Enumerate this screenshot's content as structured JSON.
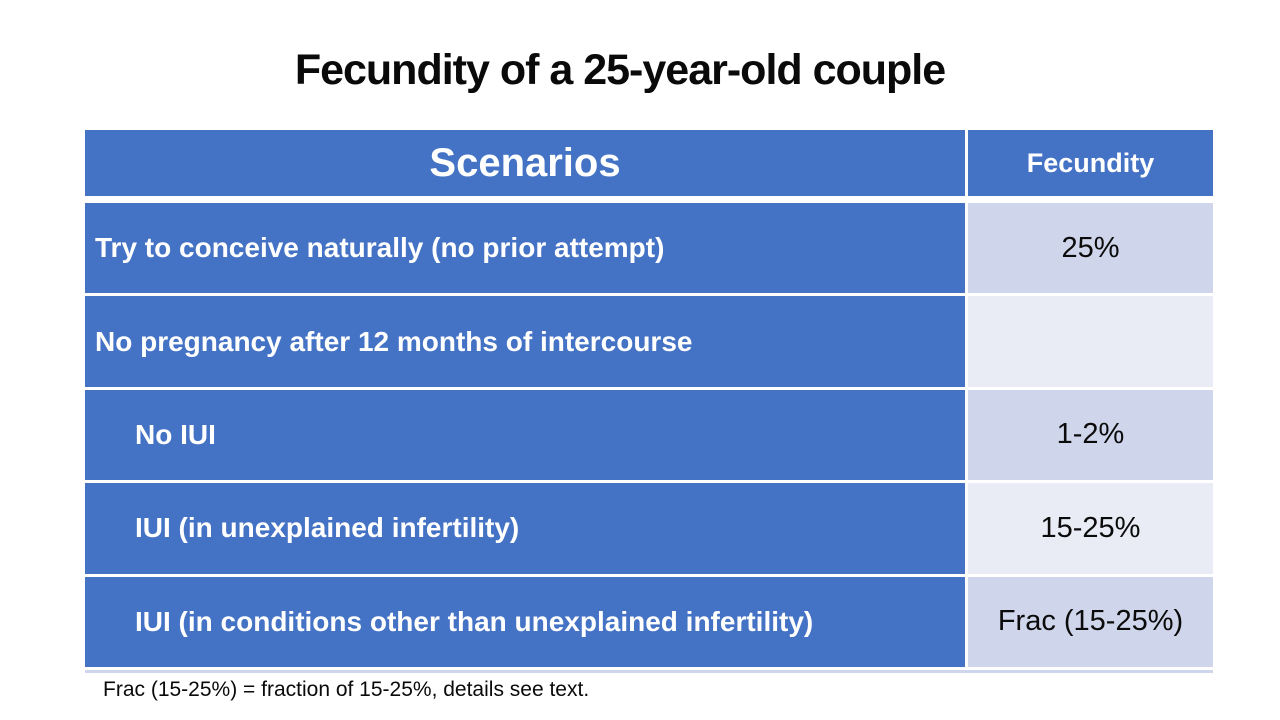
{
  "slide": {
    "title": "Fecundity of a 25-year-old couple",
    "footnote": "Frac (15-25%) = fraction of 15-25%, details see text."
  },
  "table": {
    "columns": [
      "Scenarios",
      "Fecundity"
    ],
    "rows": [
      {
        "scenario": "Try to conceive naturally (no prior attempt)",
        "fecundity": "25%",
        "indented": false
      },
      {
        "scenario": "No pregnancy after 12 months of intercourse",
        "fecundity": "",
        "indented": false
      },
      {
        "scenario": "No IUI",
        "fecundity": "1-2%",
        "indented": true
      },
      {
        "scenario": "IUI (in unexplained infertility)",
        "fecundity": "15-25%",
        "indented": true
      },
      {
        "scenario": "IUI (in conditions other than unexplained infertility)",
        "fecundity": "Frac (15-25%)",
        "indented": true
      }
    ]
  },
  "colors": {
    "header_blue": "#4472C4",
    "band_dark": "#CFD5EA",
    "band_light": "#E9EBF5",
    "text_white": "#FFFFFF",
    "text_black": "#0B0B0B"
  }
}
